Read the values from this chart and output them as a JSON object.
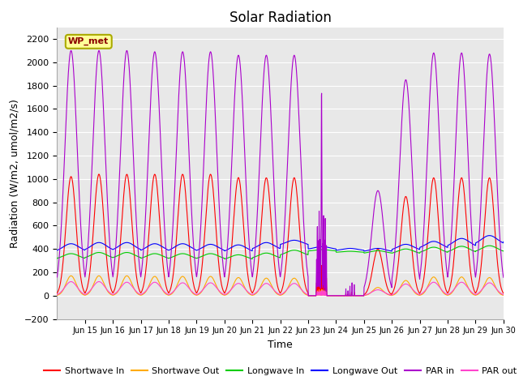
{
  "title": "Solar Radiation",
  "xlabel": "Time",
  "ylabel": "Radiation (W/m2, umol/m2/s)",
  "ylim": [
    -200,
    2300
  ],
  "yticks": [
    -200,
    0,
    200,
    400,
    600,
    800,
    1000,
    1200,
    1400,
    1600,
    1800,
    2000,
    2200
  ],
  "xlim_start": 14.0,
  "xlim_end": 30.0,
  "xtick_labels": [
    "Jun 15",
    "Jun 16",
    "Jun 17",
    "Jun 18",
    "Jun 19",
    "Jun 20",
    "Jun 21",
    "Jun 22",
    "Jun 23",
    "Jun 24",
    "Jun 25",
    "Jun 26",
    "Jun 27",
    "Jun 28",
    "Jun 29",
    "Jun 30"
  ],
  "xtick_positions": [
    15,
    16,
    17,
    18,
    19,
    20,
    21,
    22,
    23,
    24,
    25,
    26,
    27,
    28,
    29,
    30
  ],
  "station_label": "WP_met",
  "colors": {
    "shortwave_in": "#ff0000",
    "shortwave_out": "#ffaa00",
    "longwave_in": "#00cc00",
    "longwave_out": "#0000ff",
    "par_in": "#aa00cc",
    "par_out": "#ff44cc"
  },
  "legend_labels": [
    "Shortwave In",
    "Shortwave Out",
    "Longwave In",
    "Longwave Out",
    "PAR in",
    "PAR out"
  ],
  "background_color": "#e8e8e8",
  "grid_color": "#ffffff",
  "title_fontsize": 12,
  "label_fontsize": 9,
  "tick_fontsize": 8
}
